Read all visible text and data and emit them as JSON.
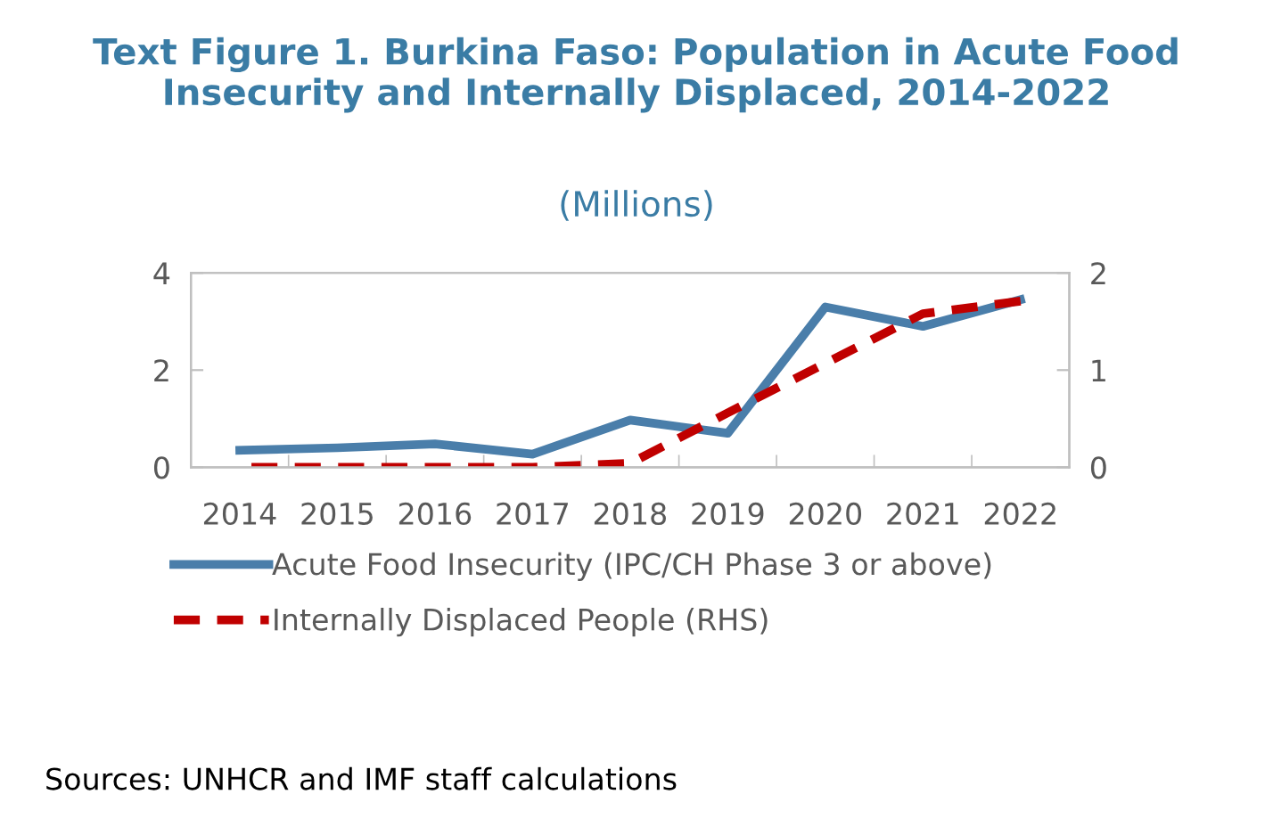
{
  "chart_data": {
    "type": "line",
    "title": "Text Figure 1. Burkina Faso: Population in Acute Food Insecurity and Internally Displaced, 2014-2022",
    "subtitle": "(Millions)",
    "categories": [
      "2014",
      "2015",
      "2016",
      "2017",
      "2018",
      "2019",
      "2020",
      "2021",
      "2022"
    ],
    "series": [
      {
        "name": "Acute Food Insecurity (IPC/CH Phase 3 or above)",
        "color": "#4a7eaa",
        "values": [
          0.35,
          0.4,
          0.48,
          0.27,
          0.97,
          0.7,
          3.3,
          2.9,
          3.45
        ],
        "line_style": "solid"
      },
      {
        "name": "Internally Displaced People (RHS)",
        "color": "#c00000",
        "values": [
          0,
          0,
          0,
          0,
          0.04,
          0.56,
          1.07,
          1.58,
          1.71
        ],
        "axis": "y2",
        "line_style": "dashed"
      }
    ],
    "ylim": [
      0,
      4
    ],
    "yticks": [
      0,
      2,
      4
    ],
    "y2lim": [
      0,
      2
    ],
    "y2ticks": [
      0,
      1,
      2
    ],
    "grid": false,
    "legend": "bottom",
    "marker": "none",
    "annotations": [
      "Sources: UNHCR and IMF staff calculations"
    ]
  }
}
